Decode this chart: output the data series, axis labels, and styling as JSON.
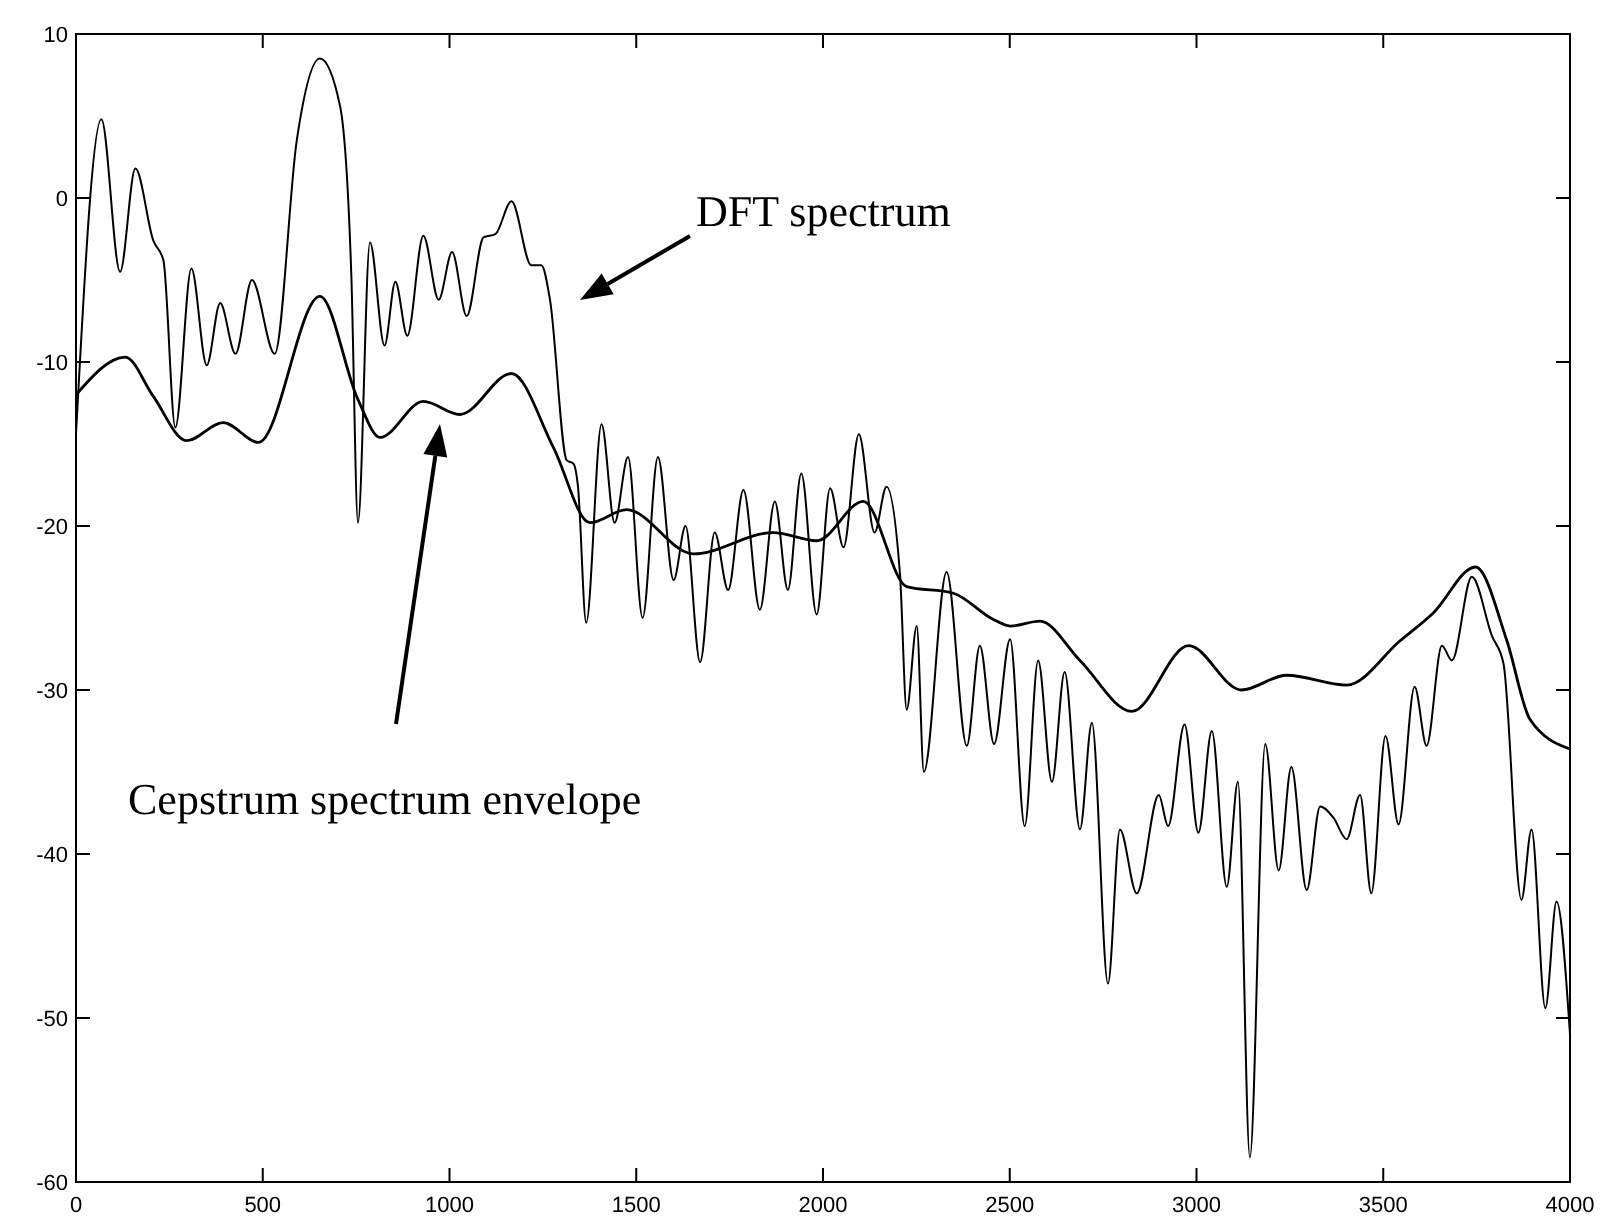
{
  "chart_data": {
    "type": "line",
    "xlim": [
      0,
      4000
    ],
    "ylim": [
      -60,
      10
    ],
    "xticks": [
      0,
      500,
      1000,
      1500,
      2000,
      2500,
      3000,
      3500,
      4000
    ],
    "yticks": [
      -60,
      -50,
      -40,
      -30,
      -20,
      -10,
      0,
      10
    ],
    "grid": false,
    "marker": "none",
    "line_style": "solid",
    "series": [
      {
        "color": "#000000",
        "x": [
          0,
          68,
          118,
          159,
          207,
          234,
          266,
          309,
          350,
          386,
          427,
          471,
          532,
          591,
          653,
          707,
          737,
          755,
          787,
          826,
          855,
          887,
          930,
          971,
          1007,
          1046,
          1091,
          1123,
          1166,
          1219,
          1246,
          1269,
          1314,
          1332,
          1344,
          1366,
          1407,
          1442,
          1478,
          1517,
          1558,
          1600,
          1632,
          1671,
          1710,
          1746,
          1787,
          1831,
          1871,
          1906,
          1942,
          1983,
          2019,
          2055,
          2096,
          2138,
          2170,
          2206,
          2224,
          2251,
          2270,
          2331,
          2385,
          2420,
          2458,
          2501,
          2540,
          2576,
          2613,
          2647,
          2688,
          2720,
          2763,
          2795,
          2840,
          2899,
          2924,
          2968,
          3005,
          3041,
          3081,
          3111,
          3143,
          3184,
          3220,
          3254,
          3295,
          3331,
          3367,
          3402,
          3438,
          3468,
          3506,
          3541,
          3584,
          3616,
          3657,
          3684,
          3737,
          3791,
          3822,
          3870,
          3897,
          3934,
          3964,
          4000
        ],
        "values": [
          -14.4,
          4.8,
          -4.5,
          1.8,
          -2.6,
          -3.8,
          -14,
          -4.3,
          -10.2,
          -6.4,
          -9.5,
          -5,
          -9.5,
          3.5,
          8.5,
          5.6,
          -4.6,
          -19.8,
          -2.7,
          -9,
          -5.1,
          -8.4,
          -2.3,
          -6.2,
          -3.3,
          -7.2,
          -2.4,
          -2.2,
          -0.2,
          -4.1,
          -4.1,
          -6.2,
          -16,
          -16.2,
          -17.6,
          -25.9,
          -13.8,
          -19.8,
          -15.8,
          -25.6,
          -15.8,
          -23.3,
          -20,
          -28.3,
          -20.4,
          -23.9,
          -17.8,
          -25.1,
          -18.5,
          -23.9,
          -16.8,
          -25.4,
          -17.7,
          -21.3,
          -14.4,
          -20.4,
          -17.6,
          -22.9,
          -31.2,
          -26.1,
          -35,
          -22.8,
          -33.4,
          -27.3,
          -33.3,
          -26.9,
          -38.3,
          -28.2,
          -35.6,
          -28.9,
          -38.5,
          -32,
          -47.9,
          -38.5,
          -42.4,
          -36.4,
          -38.3,
          -32.1,
          -38.7,
          -32.5,
          -42,
          -35.6,
          -58.5,
          -33.3,
          -41,
          -34.7,
          -42.2,
          -37.1,
          -37.8,
          -39.1,
          -36.4,
          -42.4,
          -32.8,
          -38.2,
          -29.8,
          -33.4,
          -27.3,
          -28.2,
          -23.1,
          -26.7,
          -28.4,
          -42.8,
          -38.5,
          -49.4,
          -42.9,
          -51
        ]
      },
      {
        "color": "#000000",
        "x": [
          0,
          132,
          207,
          296,
          394,
          489,
          653,
          755,
          814,
          930,
          1028,
          1166,
          1278,
          1376,
          1474,
          1653,
          1867,
          1983,
          2108,
          2224,
          2349,
          2456,
          2501,
          2581,
          2688,
          2827,
          2979,
          3120,
          3241,
          3402,
          3545,
          3634,
          3747,
          3831,
          3893,
          4000
        ],
        "values": [
          -12,
          -9.7,
          -12.1,
          -14.8,
          -13.7,
          -14.9,
          -6,
          -12.3,
          -14.6,
          -12.4,
          -13.2,
          -10.7,
          -15.2,
          -19.8,
          -19,
          -21.7,
          -20.4,
          -20.9,
          -18.5,
          -23.7,
          -24.1,
          -25.7,
          -26.1,
          -25.8,
          -28.2,
          -31.3,
          -27.3,
          -30,
          -29.1,
          -29.7,
          -27,
          -25.3,
          -22.5,
          -27,
          -31.8,
          -33.6
        ]
      }
    ],
    "annotations": [
      "DFT spectrum",
      "Cepstrum spectrum envelope"
    ]
  }
}
